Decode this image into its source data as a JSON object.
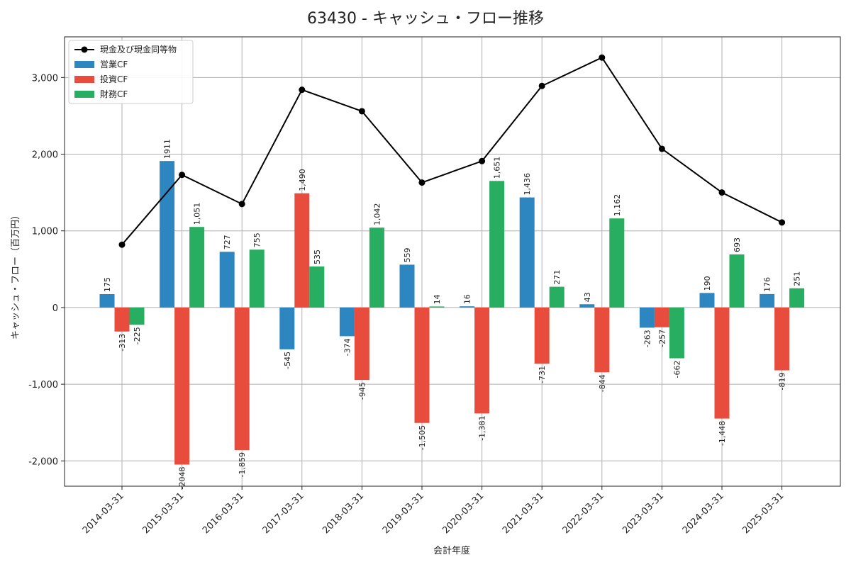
{
  "chart_data": {
    "type": "bar",
    "title": "63430 - キャッシュ・フロー推移",
    "xlabel": "会計年度",
    "ylabel": "キャッシュ・フロー（百万円）",
    "categories": [
      "2014-03-31",
      "2015-03-31",
      "2016-03-31",
      "2017-03-31",
      "2018-03-31",
      "2019-03-31",
      "2020-03-31",
      "2021-03-31",
      "2022-03-31",
      "2023-03-31",
      "2024-03-31",
      "2025-03-31"
    ],
    "ylim": [
      -2330,
      3530
    ],
    "yticks": [
      -2000,
      -1000,
      0,
      1000,
      2000,
      3000
    ],
    "ytick_labels": [
      "-2,000",
      "-1,000",
      "0",
      "1,000",
      "2,000",
      "3,000"
    ],
    "grid": true,
    "legend_position": "top-left",
    "series": [
      {
        "name": "営業CF",
        "kind": "bar",
        "color": "#2e86c1",
        "values": [
          175,
          1911,
          727,
          -545,
          -374,
          559,
          16,
          1436,
          43,
          -263,
          190,
          176
        ],
        "labels": [
          "175",
          "1911",
          "727",
          "-545",
          "-374",
          "559",
          "16",
          "1,436",
          "43",
          "-263",
          "190",
          "176"
        ]
      },
      {
        "name": "投資CF",
        "kind": "bar",
        "color": "#e74c3c",
        "values": [
          -313,
          -2048,
          -1859,
          1490,
          -945,
          -1505,
          -1381,
          -731,
          -844,
          -257,
          -1448,
          -819
        ],
        "labels": [
          "-313",
          "-2048",
          "-1,859",
          "1,490",
          "-945",
          "-1,505",
          "-1,381",
          "-731",
          "-844",
          "-257",
          "-1,448",
          "-819"
        ]
      },
      {
        "name": "財務CF",
        "kind": "bar",
        "color": "#27ae60",
        "values": [
          -225,
          1051,
          755,
          535,
          1042,
          14,
          1651,
          271,
          1162,
          -662,
          693,
          251
        ],
        "labels": [
          "-225",
          "1,051",
          "755",
          "535",
          "1,042",
          "14",
          "1,651",
          "271",
          "1,162",
          "-662",
          "693",
          "251"
        ]
      },
      {
        "name": "現金及び現金同等物",
        "kind": "line",
        "color": "#000000",
        "values": [
          820,
          1730,
          1350,
          2840,
          2560,
          1630,
          1910,
          2890,
          3260,
          2070,
          1500,
          1110
        ]
      }
    ]
  }
}
